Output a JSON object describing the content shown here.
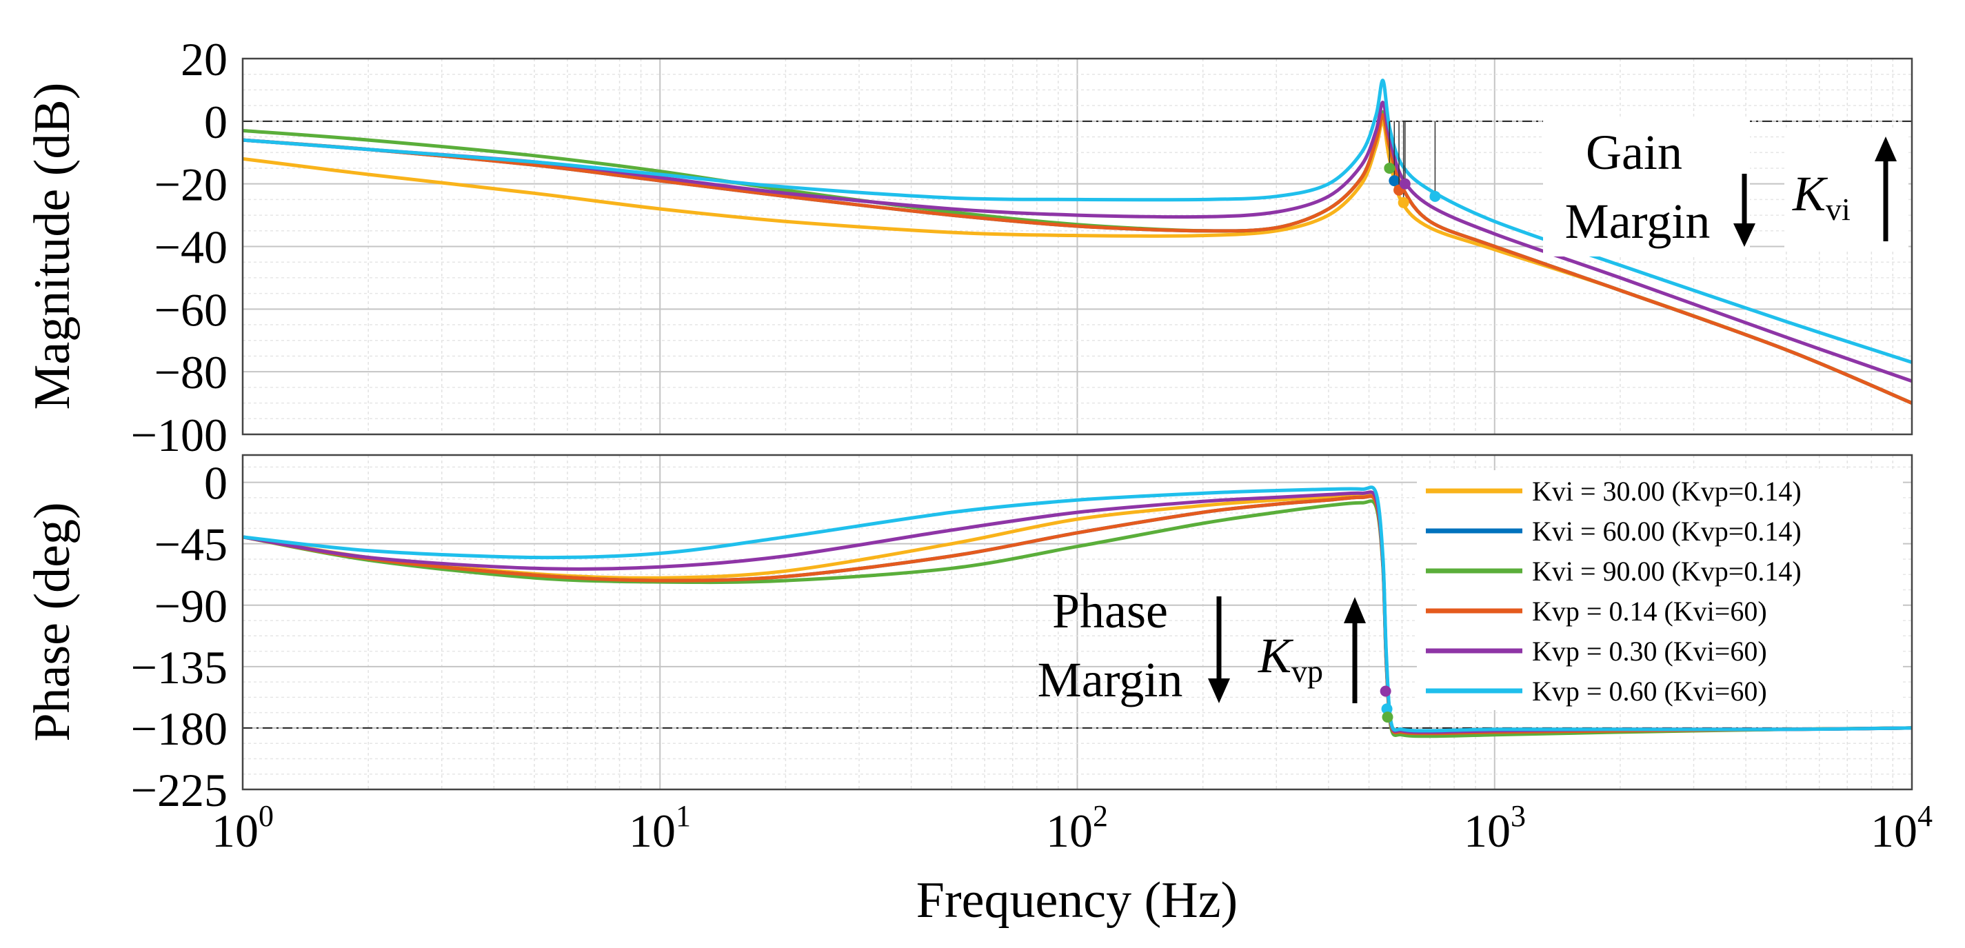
{
  "chart_data": {
    "type": "line",
    "xscale": "log",
    "xlim": [
      1,
      10000
    ],
    "xlabel": "Frequency (Hz)",
    "x_tick_labels": [
      {
        "base": "10",
        "exp": "0"
      },
      {
        "base": "10",
        "exp": "1"
      },
      {
        "base": "10",
        "exp": "2"
      },
      {
        "base": "10",
        "exp": "3"
      },
      {
        "base": "10",
        "exp": "4"
      }
    ],
    "series": [
      {
        "name": "Kvi = 30.00 (Kvp=0.14)",
        "color": "#F9B31A",
        "gm_point": [
          605,
          -26
        ]
      },
      {
        "name": "Kvi = 60.00 (Kvp=0.14)",
        "color": "#0072BD",
        "gm_point": [
          575,
          -19
        ]
      },
      {
        "name": "Kvi = 90.00 (Kvp=0.14)",
        "color": "#5AAE3A",
        "gm_point": [
          560,
          -15
        ]
      },
      {
        "name": "Kvp = 0.14 (Kvi=60)",
        "color": "#E45A1E",
        "gm_point": [
          590,
          -22
        ]
      },
      {
        "name": "Kvp = 0.30 (Kvi=60)",
        "color": "#8E35A6",
        "gm_point": [
          610,
          -20
        ]
      },
      {
        "name": "Kvp = 0.60 (Kvi=60)",
        "color": "#1FBFEC",
        "gm_point": [
          720,
          -24
        ]
      }
    ],
    "subplots": [
      {
        "id": "magnitude",
        "ylabel": "Magnitude (dB)",
        "ylim": [
          -100,
          20
        ],
        "yticks": [
          20,
          0,
          -20,
          -40,
          -60,
          -80,
          -100
        ],
        "ytick_labels": [
          "20",
          "0",
          "−20",
          "−40",
          "−60",
          "−80",
          "−100"
        ],
        "reference_line": 0,
        "series": [
          {
            "x": [
              1,
              2,
              5,
              10,
              20,
              50,
              100,
              200,
              300,
              400,
              480,
              520,
              540,
              560,
              600,
              700,
              1000,
              2000,
              5000,
              10000
            ],
            "y": [
              -12,
              -17,
              -23,
              -28,
              -32,
              -35.5,
              -36.5,
              -36.5,
              -35,
              -30,
              -20,
              -8,
              0,
              -12,
              -26,
              -34,
              -41,
              -54,
              -73,
              -90
            ]
          },
          {
            "x": [
              1,
              2,
              5,
              10,
              20,
              50,
              100,
              200,
              300,
              400,
              480,
              520,
              540,
              560,
              600,
              700,
              1000,
              2000,
              5000,
              10000
            ],
            "y": [
              -6,
              -9,
              -14,
              -19,
              -24,
              -30,
              -33.5,
              -35,
              -34,
              -28,
              -18,
              -6,
              2,
              -8,
              -21,
              -32,
              -40,
              -54,
              -73,
              -90
            ]
          },
          {
            "x": [
              1,
              2,
              5,
              10,
              20,
              50,
              100,
              200,
              300,
              400,
              480,
              520,
              540,
              560,
              600,
              700,
              1000,
              2000,
              5000,
              10000
            ],
            "y": [
              -3,
              -6,
              -11,
              -16,
              -22,
              -29,
              -33,
              -35,
              -34,
              -28,
              -18,
              -6,
              3,
              -8,
              -21,
              -32,
              -40,
              -54,
              -73,
              -90
            ]
          },
          {
            "x": [
              1,
              2,
              5,
              10,
              20,
              50,
              100,
              200,
              300,
              400,
              480,
              520,
              540,
              560,
              600,
              700,
              1000,
              2000,
              5000,
              10000
            ],
            "y": [
              -6,
              -9,
              -14,
              -19,
              -24,
              -30,
              -33.5,
              -35,
              -34,
              -28,
              -18,
              -6,
              2,
              -8,
              -21,
              -32,
              -40,
              -54,
              -73,
              -90
            ]
          },
          {
            "x": [
              1,
              2,
              5,
              10,
              20,
              50,
              100,
              200,
              300,
              400,
              480,
              520,
              540,
              560,
              600,
              700,
              1000,
              2000,
              5000,
              10000
            ],
            "y": [
              -6,
              -9,
              -13,
              -18,
              -23,
              -28,
              -30,
              -30.5,
              -29,
              -24,
              -14,
              -3,
              6,
              -5,
              -18,
              -27,
              -36,
              -50,
              -69,
              -83
            ]
          },
          {
            "x": [
              1,
              2,
              5,
              10,
              20,
              50,
              100,
              200,
              300,
              400,
              480,
              520,
              540,
              560,
              600,
              700,
              1000,
              2000,
              5000,
              10000
            ],
            "y": [
              -6,
              -9,
              -13,
              -17,
              -21,
              -24.5,
              -25,
              -25,
              -24,
              -20,
              -10,
              2,
              13,
              -2,
              -14,
              -22,
              -32,
              -46,
              -64,
              -77
            ]
          }
        ]
      },
      {
        "id": "phase",
        "ylabel": "Phase (deg)",
        "ylim": [
          -225,
          20
        ],
        "yticks": [
          0,
          -45,
          -90,
          -135,
          -180,
          -225
        ],
        "ytick_labels": [
          "0",
          "−45",
          "−90",
          "−135",
          "−180",
          "−225"
        ],
        "reference_line": -180,
        "series": [
          {
            "x": [
              1,
              2,
              5,
              10,
              20,
              50,
              100,
              200,
              300,
              400,
              480,
              520,
              540,
              550,
              565,
              600,
              700,
              1000,
              2000,
              5000,
              10000
            ],
            "y": [
              -40,
              -55,
              -67,
              -70,
              -65,
              -45,
              -27,
              -17,
              -13,
              -11,
              -10,
              -14,
              -60,
              -130,
              -178,
              -183,
              -184,
              -183,
              -182,
              -181,
              -180
            ]
          },
          {
            "x": [
              1,
              2,
              5,
              10,
              20,
              50,
              100,
              200,
              300,
              400,
              480,
              520,
              540,
              550,
              565,
              600,
              700,
              1000,
              2000,
              5000,
              10000
            ],
            "y": [
              -40,
              -56,
              -68,
              -72,
              -69,
              -54,
              -37,
              -22,
              -16,
              -13,
              -11,
              -15,
              -60,
              -130,
              -178,
              -183,
              -184,
              -183,
              -182,
              -181,
              -180
            ]
          },
          {
            "x": [
              1,
              2,
              5,
              10,
              20,
              50,
              100,
              200,
              300,
              400,
              480,
              520,
              540,
              550,
              565,
              600,
              700,
              1000,
              2000,
              5000,
              10000
            ],
            "y": [
              -40,
              -57,
              -70,
              -73,
              -72,
              -63,
              -47,
              -30,
              -22,
              -17,
              -15,
              -18,
              -62,
              -132,
              -180,
              -185,
              -186,
              -185,
              -183,
              -181,
              -180
            ]
          },
          {
            "x": [
              1,
              2,
              5,
              10,
              20,
              50,
              100,
              200,
              300,
              400,
              480,
              520,
              540,
              550,
              565,
              600,
              700,
              1000,
              2000,
              5000,
              10000
            ],
            "y": [
              -40,
              -56,
              -68,
              -72,
              -69,
              -54,
              -37,
              -22,
              -16,
              -13,
              -11,
              -15,
              -60,
              -130,
              -178,
              -183,
              -184,
              -183,
              -182,
              -181,
              -180
            ]
          },
          {
            "x": [
              1,
              2,
              5,
              10,
              20,
              50,
              100,
              200,
              300,
              400,
              480,
              520,
              540,
              550,
              565,
              600,
              700,
              1000,
              2000,
              5000,
              10000
            ],
            "y": [
              -40,
              -55,
              -63,
              -62,
              -54,
              -35,
              -22,
              -14,
              -11,
              -9,
              -8,
              -12,
              -58,
              -128,
              -177,
              -182,
              -183,
              -182,
              -181,
              -181,
              -180
            ]
          },
          {
            "x": [
              1,
              2,
              5,
              10,
              20,
              50,
              100,
              200,
              300,
              400,
              480,
              520,
              540,
              550,
              565,
              600,
              700,
              1000,
              2000,
              5000,
              10000
            ],
            "y": [
              -40,
              -50,
              -55,
              -52,
              -40,
              -22,
              -13,
              -8,
              -6,
              -5,
              -5,
              -8,
              -55,
              -125,
              -176,
              -181,
              -182,
              -181,
              -181,
              -181,
              -180
            ]
          }
        ],
        "markers": [
          {
            "x": 548,
            "y": -153,
            "series": 4
          },
          {
            "x": 552,
            "y": -166,
            "series": 5
          },
          {
            "x": 554,
            "y": -172,
            "series": 2
          }
        ]
      }
    ],
    "annotations": {
      "gain_margin": [
        "Gain",
        "Margin"
      ],
      "kvi_symbol": "K",
      "kvi_subscript": "vi",
      "phase_margin": [
        "Phase",
        "Margin"
      ],
      "kvp_symbol": "K",
      "kvp_subscript": "vp"
    }
  }
}
